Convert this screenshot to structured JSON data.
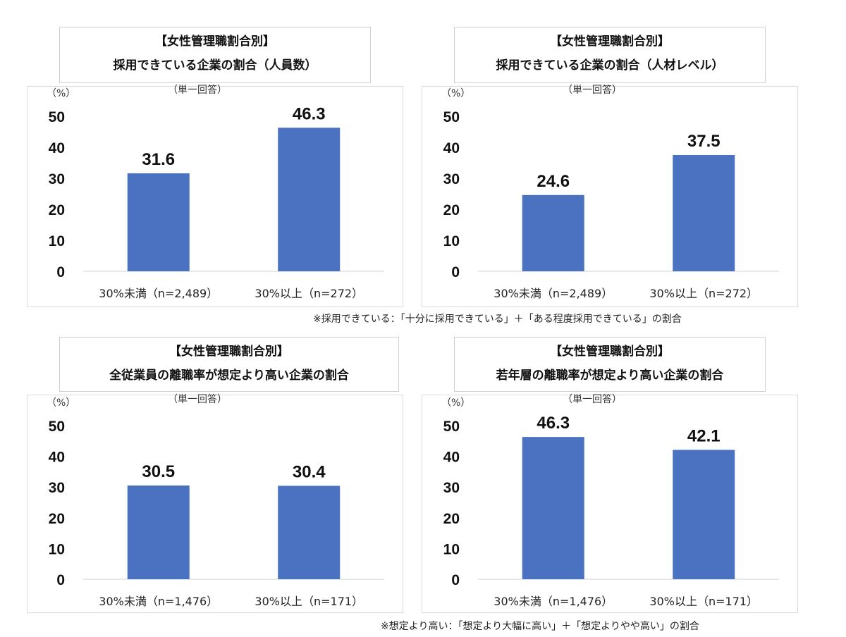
{
  "chart_data": [
    {
      "type": "bar",
      "title_line1": "【女性管理職割合別】",
      "title_line2": "採用できている企業の割合（人員数）",
      "subtitle": "（単一回答）",
      "yunit": "（%）",
      "ylim": [
        0,
        50
      ],
      "yticks": [
        "0",
        "10",
        "20",
        "30",
        "40",
        "50"
      ],
      "categories": [
        "30%未満（n=2,489）",
        "30%以上（n=272）"
      ],
      "values": [
        31.6,
        46.3
      ],
      "value_labels": [
        "31.6",
        "46.3"
      ],
      "color": "#4a72c0"
    },
    {
      "type": "bar",
      "title_line1": "【女性管理職割合別】",
      "title_line2": "採用できている企業の割合（人材レベル）",
      "subtitle": "（単一回答）",
      "yunit": "（%）",
      "ylim": [
        0,
        50
      ],
      "yticks": [
        "0",
        "10",
        "20",
        "30",
        "40",
        "50"
      ],
      "categories": [
        "30%未満（n=2,489）",
        "30%以上（n=272）"
      ],
      "values": [
        24.6,
        37.5
      ],
      "value_labels": [
        "24.6",
        "37.5"
      ],
      "color": "#4a72c0"
    },
    {
      "type": "bar",
      "title_line1": "【女性管理職割合別】",
      "title_line2": "全従業員の離職率が想定より高い企業の割合",
      "subtitle": "（単一回答）",
      "yunit": "（%）",
      "ylim": [
        0,
        50
      ],
      "yticks": [
        "0",
        "10",
        "20",
        "30",
        "40",
        "50"
      ],
      "categories": [
        "30%未満（n=1,476）",
        "30%以上（n=171）"
      ],
      "values": [
        30.5,
        30.4
      ],
      "value_labels": [
        "30.5",
        "30.4"
      ],
      "color": "#4a72c0"
    },
    {
      "type": "bar",
      "title_line1": "【女性管理職割合別】",
      "title_line2": "若年層の離職率が想定より高い企業の割合",
      "subtitle": "（単一回答）",
      "yunit": "（%）",
      "ylim": [
        0,
        50
      ],
      "yticks": [
        "0",
        "10",
        "20",
        "30",
        "40",
        "50"
      ],
      "categories": [
        "30%未満（n=1,476）",
        "30%以上（n=171）"
      ],
      "values": [
        46.3,
        42.1
      ],
      "value_labels": [
        "46.3",
        "42.1"
      ],
      "color": "#4a72c0"
    }
  ],
  "footnotes": {
    "top": "※採用できている：「十分に採用できている」＋「ある程度採用できている」の割合",
    "bottom": "※想定より高い：「想定より大幅に高い」＋「想定よりやや高い」の割合"
  }
}
